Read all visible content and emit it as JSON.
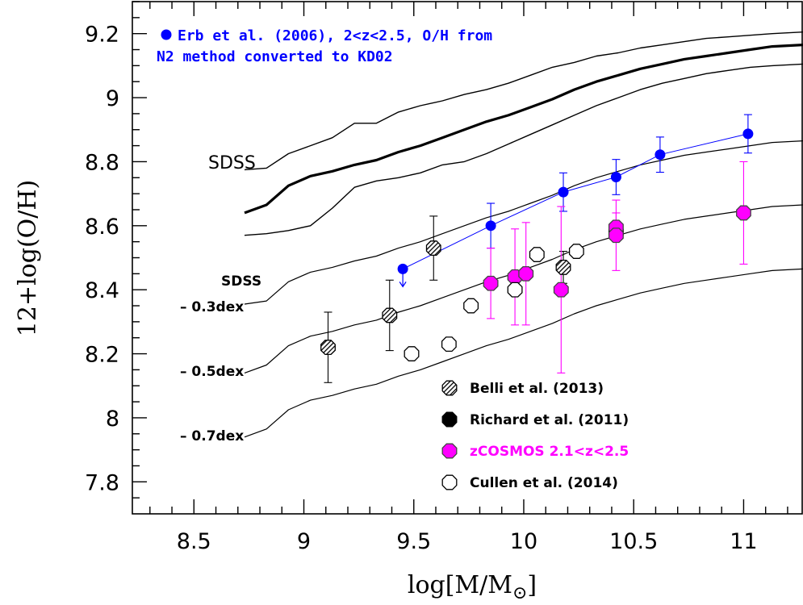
{
  "chart_data": {
    "type": "scatter",
    "xlabel": "log[M/M",
    "xlabel_sub": "⊙",
    "xlabel_close": "]",
    "ylabel": "12+log(O/H)",
    "xlim": [
      8.22,
      11.27
    ],
    "ylim": [
      7.7,
      9.3
    ],
    "x_ticks": [
      8.5,
      9,
      9.5,
      10,
      10.5,
      11
    ],
    "x_tick_labels": [
      "8.5",
      "9",
      "9.5",
      "10",
      "10.5",
      "11"
    ],
    "y_ticks": [
      7.8,
      8,
      8.2,
      8.4,
      8.6,
      8.8,
      9,
      9.2
    ],
    "y_tick_labels": [
      "7.8",
      "8",
      "8.2",
      "8.4",
      "8.6",
      "8.8",
      "9",
      "9.2"
    ],
    "colors": {
      "erb": "#0000ff",
      "zcosmos": "#ff00ff",
      "black": "#000000"
    },
    "annotations": {
      "erb_note_line1": "Erb et al. (2006), 2<z<2.5, O/H from",
      "erb_note_line2": "N2 method converted to KD02",
      "sdss": "SDSS",
      "sdss_offsets_title": "SDSS",
      "offset_03": "– 0.3dex",
      "offset_05": "– 0.5dex",
      "offset_07": "– 0.7dex"
    },
    "legend": [
      {
        "name": "Belli et al. (2013)",
        "marker": "octagon-hatched",
        "color": "#000000"
      },
      {
        "name": "Richard et al. (2011)",
        "marker": "octagon-filled",
        "color": "#000000"
      },
      {
        "name": "zCOSMOS 2.1<z<2.5",
        "marker": "octagon-filled",
        "color": "#ff00ff"
      },
      {
        "name": "Cullen et al. (2014)",
        "marker": "octagon-open",
        "color": "#000000"
      }
    ],
    "sdss_curves": {
      "median": {
        "x": [
          8.73,
          8.83,
          8.93,
          9.03,
          9.13,
          9.23,
          9.33,
          9.43,
          9.53,
          9.63,
          9.73,
          9.83,
          9.93,
          10.03,
          10.13,
          10.23,
          10.33,
          10.43,
          10.53,
          10.63,
          10.73,
          10.83,
          10.93,
          11.03,
          11.13,
          11.27
        ],
        "y": [
          8.64,
          8.665,
          8.725,
          8.755,
          8.77,
          8.79,
          8.805,
          8.83,
          8.85,
          8.875,
          8.9,
          8.925,
          8.945,
          8.97,
          8.995,
          9.025,
          9.05,
          9.07,
          9.09,
          9.105,
          9.12,
          9.13,
          9.14,
          9.15,
          9.16,
          9.165
        ]
      },
      "upper": {
        "x": [
          8.73,
          8.83,
          8.93,
          9.03,
          9.13,
          9.23,
          9.33,
          9.43,
          9.53,
          9.63,
          9.73,
          9.83,
          9.93,
          10.03,
          10.13,
          10.23,
          10.33,
          10.43,
          10.53,
          10.63,
          10.73,
          10.83,
          10.93,
          11.03,
          11.13,
          11.27
        ],
        "y": [
          8.775,
          8.78,
          8.825,
          8.85,
          8.875,
          8.92,
          8.92,
          8.955,
          8.975,
          8.99,
          9.01,
          9.025,
          9.045,
          9.07,
          9.095,
          9.11,
          9.13,
          9.14,
          9.155,
          9.165,
          9.175,
          9.185,
          9.19,
          9.195,
          9.2,
          9.205
        ]
      },
      "lower": {
        "x": [
          8.73,
          8.83,
          8.93,
          9.03,
          9.13,
          9.23,
          9.33,
          9.43,
          9.53,
          9.63,
          9.73,
          9.83,
          9.93,
          10.03,
          10.13,
          10.23,
          10.33,
          10.43,
          10.53,
          10.63,
          10.73,
          10.83,
          10.93,
          11.03,
          11.13,
          11.27
        ],
        "y": [
          8.57,
          8.575,
          8.585,
          8.6,
          8.655,
          8.72,
          8.74,
          8.75,
          8.765,
          8.79,
          8.8,
          8.825,
          8.855,
          8.885,
          8.915,
          8.945,
          8.975,
          9.0,
          9.025,
          9.045,
          9.06,
          9.075,
          9.085,
          9.095,
          9.1,
          9.105
        ]
      },
      "offset_03": {
        "x": [
          8.73,
          8.83,
          8.93,
          9.03,
          9.13,
          9.23,
          9.33,
          9.43,
          9.53,
          9.63,
          9.73,
          9.83,
          9.93,
          10.03,
          10.13,
          10.23,
          10.33,
          10.43,
          10.53,
          10.63,
          10.73,
          10.83,
          10.93,
          11.03,
          11.13,
          11.27
        ],
        "y": [
          8.355,
          8.365,
          8.425,
          8.455,
          8.47,
          8.49,
          8.505,
          8.53,
          8.55,
          8.575,
          8.6,
          8.625,
          8.645,
          8.67,
          8.695,
          8.725,
          8.75,
          8.77,
          8.79,
          8.805,
          8.82,
          8.83,
          8.84,
          8.85,
          8.86,
          8.865
        ]
      },
      "offset_05": {
        "x": [
          8.73,
          8.83,
          8.93,
          9.03,
          9.13,
          9.23,
          9.33,
          9.43,
          9.53,
          9.63,
          9.73,
          9.83,
          9.93,
          10.03,
          10.13,
          10.23,
          10.33,
          10.43,
          10.53,
          10.63,
          10.73,
          10.83,
          10.93,
          11.03,
          11.13,
          11.27
        ],
        "y": [
          8.14,
          8.165,
          8.225,
          8.255,
          8.27,
          8.29,
          8.305,
          8.33,
          8.35,
          8.375,
          8.4,
          8.425,
          8.445,
          8.47,
          8.495,
          8.525,
          8.55,
          8.57,
          8.59,
          8.605,
          8.62,
          8.63,
          8.64,
          8.65,
          8.66,
          8.665
        ]
      },
      "offset_07": {
        "x": [
          8.73,
          8.83,
          8.93,
          9.03,
          9.13,
          9.23,
          9.33,
          9.43,
          9.53,
          9.63,
          9.73,
          9.83,
          9.93,
          10.03,
          10.13,
          10.23,
          10.33,
          10.43,
          10.53,
          10.63,
          10.73,
          10.83,
          10.93,
          11.03,
          11.13,
          11.27
        ],
        "y": [
          7.94,
          7.965,
          8.025,
          8.055,
          8.07,
          8.09,
          8.105,
          8.13,
          8.15,
          8.175,
          8.2,
          8.225,
          8.245,
          8.27,
          8.295,
          8.325,
          8.35,
          8.37,
          8.39,
          8.405,
          8.42,
          8.43,
          8.44,
          8.45,
          8.46,
          8.465
        ]
      }
    },
    "series": [
      {
        "name": "Erb et al. (2006), 2<z<2.5, O/H from N2 method converted to KD02",
        "marker": "circle-filled",
        "color": "#0000ff",
        "connected": true,
        "upper_limit_index": 0,
        "points": [
          {
            "x": 9.45,
            "y": 8.465,
            "err": 0
          },
          {
            "x": 9.85,
            "y": 8.6,
            "err": 0.07
          },
          {
            "x": 10.18,
            "y": 8.705,
            "err": 0.06
          },
          {
            "x": 10.42,
            "y": 8.752,
            "err": 0.055
          },
          {
            "x": 10.62,
            "y": 8.822,
            "err": 0.055
          },
          {
            "x": 11.02,
            "y": 8.887,
            "err": 0.06
          }
        ]
      },
      {
        "name": "Belli et al. (2013)",
        "marker": "octagon-hatched",
        "color": "#000000",
        "points": [
          {
            "x": 9.11,
            "y": 8.22,
            "err": 0.11
          },
          {
            "x": 9.39,
            "y": 8.32,
            "err": 0.11
          },
          {
            "x": 9.59,
            "y": 8.53,
            "err": 0.1
          },
          {
            "x": 10.18,
            "y": 8.47,
            "err": 0.05
          },
          {
            "x": 10.42,
            "y": 8.58,
            "err": 0.02
          }
        ]
      },
      {
        "name": "zCOSMOS 2.1<z<2.5",
        "marker": "octagon-filled",
        "color": "#ff00ff",
        "points": [
          {
            "x": 9.85,
            "y": 8.42,
            "err": 0.11
          },
          {
            "x": 9.96,
            "y": 8.44,
            "err": 0.15
          },
          {
            "x": 10.01,
            "y": 8.45,
            "err": 0.16
          },
          {
            "x": 10.17,
            "y": 8.4,
            "err": 0.26
          },
          {
            "x": 10.42,
            "y": 8.595,
            "err": 0.045
          },
          {
            "x": 10.42,
            "y": 8.57,
            "err": 0.11
          },
          {
            "x": 11.0,
            "y": 8.64,
            "err": 0.16
          }
        ]
      },
      {
        "name": "Cullen et al. (2014)",
        "marker": "octagon-open",
        "color": "#000000",
        "points": [
          {
            "x": 9.49,
            "y": 8.2
          },
          {
            "x": 9.66,
            "y": 8.23
          },
          {
            "x": 9.76,
            "y": 8.35
          },
          {
            "x": 9.96,
            "y": 8.4
          },
          {
            "x": 10.06,
            "y": 8.51
          },
          {
            "x": 10.24,
            "y": 8.52
          }
        ]
      }
    ]
  }
}
